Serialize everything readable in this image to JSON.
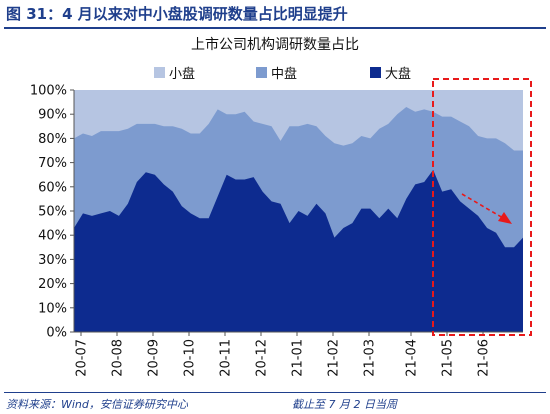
{
  "figure_title": "图 31：4 月以来对中小盘股调研数量占比明显提升",
  "source": "资料来源：Wind，安信证券研究中心",
  "note": "截止至 7 月 2 日当周",
  "colors": {
    "small": "#b6c5e2",
    "mid": "#7d9bcf",
    "large": "#0d2b8f",
    "frame": "#1f3f8c",
    "highlight": "#e8191a"
  },
  "chart_data": {
    "type": "area",
    "stacked": true,
    "title": "上市公司机构调研数量占比",
    "legend": [
      "小盘",
      "中盘",
      "大盘"
    ],
    "legend_position": "top-right",
    "y_ticks": [
      "0%",
      "10%",
      "20%",
      "30%",
      "40%",
      "50%",
      "60%",
      "70%",
      "80%",
      "90%",
      "100%"
    ],
    "ylim": [
      0,
      100
    ],
    "x_ticks": [
      "20-07",
      "20-08",
      "20-09",
      "20-10",
      "20-11",
      "20-12",
      "21-01",
      "21-02",
      "21-03",
      "21-04",
      "21-05",
      "21-06"
    ],
    "series": [
      {
        "name": "大盘",
        "values": [
          43,
          49,
          48,
          49,
          50,
          48,
          53,
          62,
          66,
          65,
          61,
          58,
          52,
          49,
          47,
          47,
          56,
          65,
          63,
          63,
          64,
          58,
          54,
          53,
          45,
          50,
          48,
          53,
          49,
          39,
          43,
          45,
          51,
          51,
          47,
          51,
          47,
          55,
          61,
          62,
          67,
          58,
          59,
          54,
          51,
          48,
          43,
          41,
          35,
          35,
          39
        ]
      },
      {
        "name": "中盘",
        "values": [
          80,
          82,
          81,
          83,
          83,
          83,
          84,
          86,
          86,
          86,
          85,
          85,
          84,
          82,
          82,
          86,
          92,
          90,
          90,
          91,
          87,
          86,
          85,
          79,
          85,
          85,
          86,
          85,
          81,
          78,
          77,
          78,
          81,
          80,
          84,
          86,
          90,
          93,
          91,
          92,
          91,
          89,
          89,
          87,
          85,
          81,
          80,
          80,
          78,
          75,
          75
        ]
      },
      {
        "name": "小盘",
        "values": [
          100,
          100,
          100,
          100,
          100,
          100,
          100,
          100,
          100,
          100,
          100,
          100,
          100,
          100,
          100,
          100,
          100,
          100,
          100,
          100,
          100,
          100,
          100,
          100,
          100,
          100,
          100,
          100,
          100,
          100,
          100,
          100,
          100,
          100,
          100,
          100,
          100,
          100,
          100,
          100,
          100,
          100,
          100,
          100,
          100,
          100,
          100,
          100,
          100,
          100,
          100
        ]
      }
    ],
    "highlight_box_from": "21-04",
    "trend_arrow": "down"
  }
}
